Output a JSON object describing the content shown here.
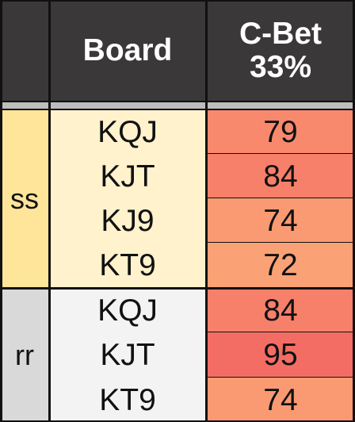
{
  "header": {
    "group_label": "",
    "board_label": "Board",
    "cbet_line1": "C-Bet",
    "cbet_line2": "33%"
  },
  "groups": [
    {
      "name": "ss",
      "color": "#ffe599",
      "board_bg": "#fff2cc",
      "rows": [
        {
          "board": "KQJ",
          "value": "79",
          "color": "#f8896d"
        },
        {
          "board": "KJT",
          "value": "84",
          "color": "#f7806a"
        },
        {
          "board": "KJ9",
          "value": "74",
          "color": "#fa9a72"
        },
        {
          "board": "KT9",
          "value": "72",
          "color": "#faa175"
        }
      ]
    },
    {
      "name": "rr",
      "color": "#d9d9d9",
      "board_bg": "#f3f3f3",
      "rows": [
        {
          "board": "KQJ",
          "value": "84",
          "color": "#f7806a"
        },
        {
          "board": "KJT",
          "value": "95",
          "color": "#f46d64"
        },
        {
          "board": "KT9",
          "value": "74",
          "color": "#fa9a72"
        }
      ]
    }
  ],
  "colors": {
    "header_bg": "#3a3838",
    "header_text": "#ffffff",
    "separator": "#bdbdbd",
    "grid": "#111111"
  }
}
